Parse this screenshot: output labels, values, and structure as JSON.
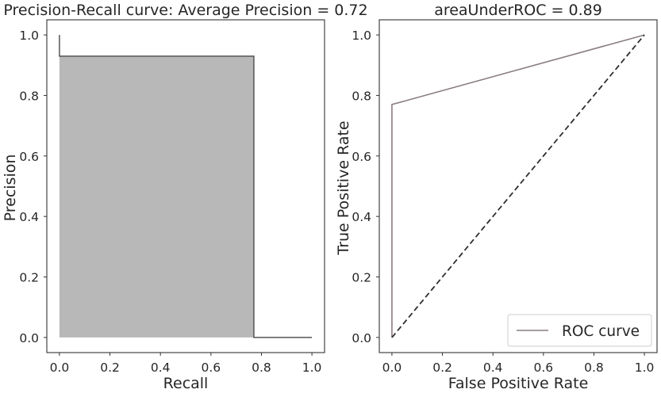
{
  "chart_data": [
    {
      "type": "area",
      "title": "Precision-Recall curve: Average Precision = 0.72",
      "xlabel": "Recall",
      "ylabel": "Precision",
      "xlim": [
        -0.05,
        1.05
      ],
      "ylim": [
        -0.05,
        1.05
      ],
      "xticks": [
        "0.0",
        "0.2",
        "0.4",
        "0.6",
        "0.8",
        "1.0"
      ],
      "yticks": [
        "0.0",
        "0.2",
        "0.4",
        "0.6",
        "0.8",
        "1.0"
      ],
      "grid": false,
      "series": [
        {
          "style": "step",
          "x": [
            0.0,
            0.0,
            0.77,
            0.77,
            1.0
          ],
          "y": [
            1.0,
            0.93,
            0.93,
            0.0,
            0.0
          ],
          "fill": true
        }
      ]
    },
    {
      "type": "line",
      "title": "areaUnderROC = 0.89",
      "xlabel": "False Positive Rate",
      "ylabel": "True Positive Rate",
      "xlim": [
        -0.05,
        1.05
      ],
      "ylim": [
        -0.05,
        1.05
      ],
      "xticks": [
        "0.0",
        "0.2",
        "0.4",
        "0.6",
        "0.8",
        "1.0"
      ],
      "yticks": [
        "0.0",
        "0.2",
        "0.4",
        "0.6",
        "0.8",
        "1.0"
      ],
      "grid": false,
      "legend": "lower-right",
      "series": [
        {
          "name": "ROC curve",
          "x": [
            0.0,
            0.0,
            1.0
          ],
          "y": [
            0.0,
            0.77,
            1.0
          ]
        },
        {
          "style": "dashed",
          "x": [
            0.0,
            1.0
          ],
          "y": [
            0.0,
            1.0
          ]
        }
      ]
    }
  ],
  "colors": {
    "fill": "#b8b8b8",
    "pr_line": "#555555",
    "roc_line": "#8a7d80",
    "diagonal": "#2f2f2f",
    "frame": "#333333",
    "text": "#262626"
  }
}
